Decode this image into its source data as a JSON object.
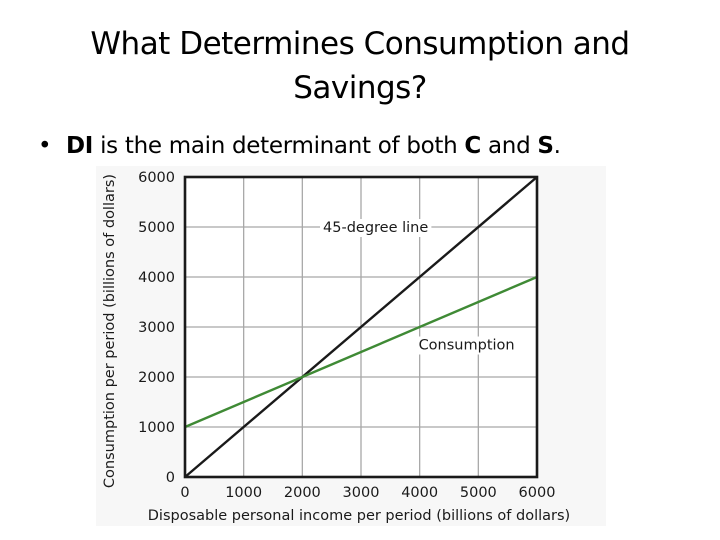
{
  "slide": {
    "title_line1": "What Determines Consumption and",
    "title_line2": "Savings?",
    "bullet": {
      "symbol": "•",
      "part1_bold": "DI",
      "part2": " is the main determinant of both ",
      "part3_bold": "C",
      "part4": " and ",
      "part5_bold": "S",
      "part6": "."
    }
  },
  "chart_data": {
    "type": "line",
    "title": "",
    "xlabel": "Disposable personal income per period (billions of dollars)",
    "ylabel": "Consumption per period (billions of dollars)",
    "xlim": [
      0,
      6000
    ],
    "ylim": [
      0,
      6000
    ],
    "x_ticks": [
      "0",
      "1000",
      "2000",
      "3000",
      "4000",
      "5000",
      "6000"
    ],
    "y_ticks": [
      "0",
      "1000",
      "2000",
      "3000",
      "4000",
      "5000",
      "6000"
    ],
    "grid": true,
    "series": [
      {
        "name": "45-degree line",
        "color": "#1a1a1a",
        "x": [
          0,
          6000
        ],
        "y": [
          0,
          6000
        ]
      },
      {
        "name": "Consumption",
        "color": "#3f8a35",
        "x": [
          0,
          2000,
          6000
        ],
        "y": [
          1000,
          2000,
          4000
        ]
      }
    ],
    "annotations": [
      {
        "text": "45-degree line",
        "x": 3250,
        "y": 5000
      },
      {
        "text": "Consumption",
        "x": 4800,
        "y": 2650
      }
    ]
  }
}
